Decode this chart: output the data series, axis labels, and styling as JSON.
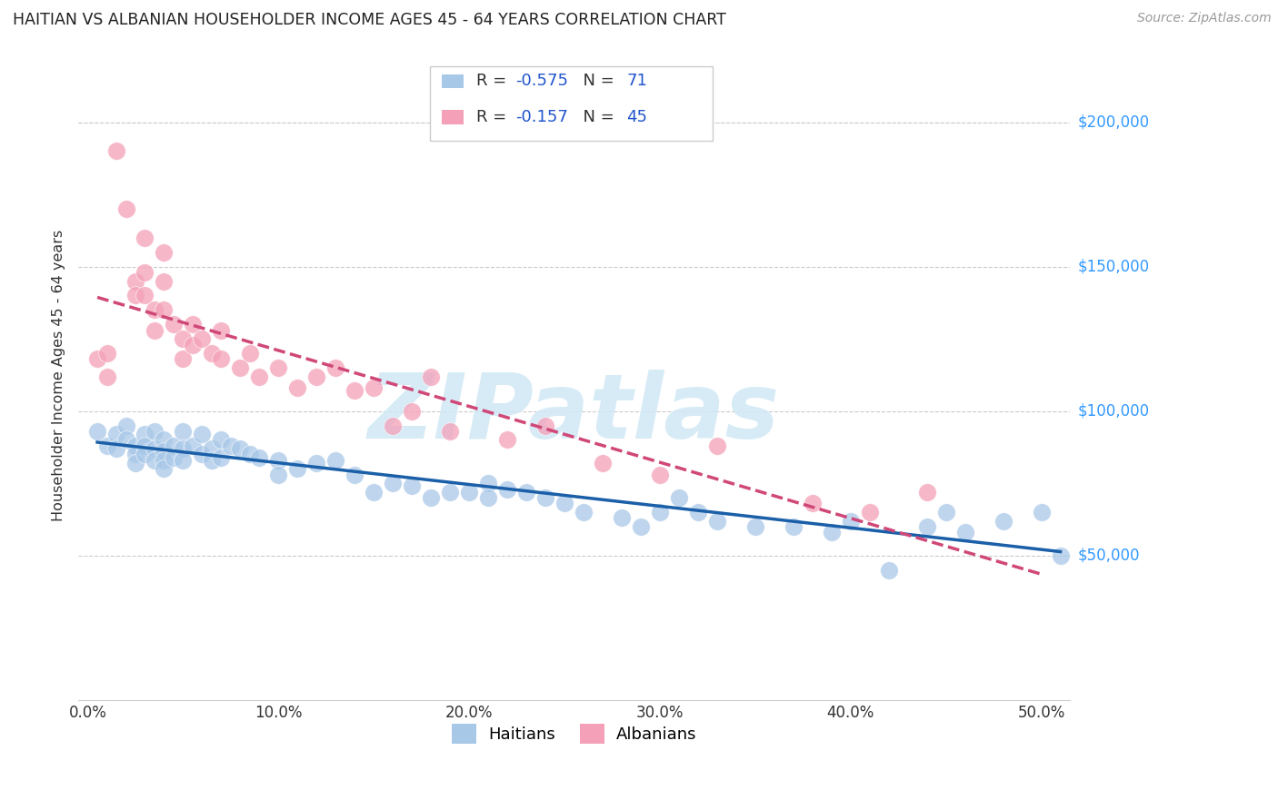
{
  "title": "HAITIAN VS ALBANIAN HOUSEHOLDER INCOME AGES 45 - 64 YEARS CORRELATION CHART",
  "source": "Source: ZipAtlas.com",
  "ylabel": "Householder Income Ages 45 - 64 years",
  "xlabel_ticks": [
    "0.0%",
    "10.0%",
    "20.0%",
    "30.0%",
    "40.0%",
    "50.0%"
  ],
  "xlabel_vals": [
    0.0,
    0.1,
    0.2,
    0.3,
    0.4,
    0.5
  ],
  "ytick_labels": [
    "$50,000",
    "$100,000",
    "$150,000",
    "$200,000"
  ],
  "ytick_vals": [
    50000,
    100000,
    150000,
    200000
  ],
  "ylim": [
    0,
    225000
  ],
  "xlim": [
    -0.005,
    0.515
  ],
  "r_haitian": -0.575,
  "n_haitian": 71,
  "r_albanian": -0.157,
  "n_albanian": 45,
  "haitian_color": "#a8c8e8",
  "albanian_color": "#f4a0b8",
  "haitian_line_color": "#1a5fa8",
  "albanian_line_color": "#d04878",
  "legend_r_color": "#2255cc",
  "watermark_color": "#d0e8f5",
  "watermark": "ZIPatlas",
  "haitian_x": [
    0.005,
    0.01,
    0.015,
    0.015,
    0.02,
    0.02,
    0.025,
    0.025,
    0.025,
    0.03,
    0.03,
    0.03,
    0.035,
    0.035,
    0.035,
    0.04,
    0.04,
    0.04,
    0.04,
    0.045,
    0.045,
    0.05,
    0.05,
    0.05,
    0.055,
    0.06,
    0.06,
    0.065,
    0.065,
    0.07,
    0.07,
    0.075,
    0.08,
    0.085,
    0.09,
    0.1,
    0.1,
    0.11,
    0.12,
    0.13,
    0.14,
    0.15,
    0.16,
    0.17,
    0.18,
    0.19,
    0.2,
    0.21,
    0.21,
    0.22,
    0.23,
    0.24,
    0.25,
    0.26,
    0.28,
    0.29,
    0.3,
    0.31,
    0.32,
    0.33,
    0.35,
    0.37,
    0.39,
    0.4,
    0.42,
    0.44,
    0.45,
    0.46,
    0.48,
    0.5,
    0.51
  ],
  "haitian_y": [
    93000,
    88000,
    92000,
    87000,
    95000,
    90000,
    88000,
    85000,
    82000,
    92000,
    88000,
    85000,
    93000,
    87000,
    83000,
    90000,
    86000,
    83000,
    80000,
    88000,
    84000,
    93000,
    87000,
    83000,
    88000,
    92000,
    85000,
    87000,
    83000,
    90000,
    84000,
    88000,
    87000,
    85000,
    84000,
    83000,
    78000,
    80000,
    82000,
    83000,
    78000,
    72000,
    75000,
    74000,
    70000,
    72000,
    72000,
    75000,
    70000,
    73000,
    72000,
    70000,
    68000,
    65000,
    63000,
    60000,
    65000,
    70000,
    65000,
    62000,
    60000,
    60000,
    58000,
    62000,
    45000,
    60000,
    65000,
    58000,
    62000,
    65000,
    50000
  ],
  "albanian_x": [
    0.005,
    0.01,
    0.01,
    0.015,
    0.02,
    0.025,
    0.025,
    0.03,
    0.03,
    0.03,
    0.035,
    0.035,
    0.04,
    0.04,
    0.04,
    0.045,
    0.05,
    0.05,
    0.055,
    0.055,
    0.06,
    0.065,
    0.07,
    0.07,
    0.08,
    0.085,
    0.09,
    0.1,
    0.11,
    0.12,
    0.13,
    0.14,
    0.15,
    0.16,
    0.17,
    0.18,
    0.19,
    0.22,
    0.24,
    0.27,
    0.3,
    0.33,
    0.38,
    0.41,
    0.44
  ],
  "albanian_y": [
    118000,
    120000,
    112000,
    190000,
    170000,
    145000,
    140000,
    160000,
    148000,
    140000,
    135000,
    128000,
    155000,
    145000,
    135000,
    130000,
    125000,
    118000,
    130000,
    123000,
    125000,
    120000,
    128000,
    118000,
    115000,
    120000,
    112000,
    115000,
    108000,
    112000,
    115000,
    107000,
    108000,
    95000,
    100000,
    112000,
    93000,
    90000,
    95000,
    82000,
    78000,
    88000,
    68000,
    65000,
    72000
  ]
}
